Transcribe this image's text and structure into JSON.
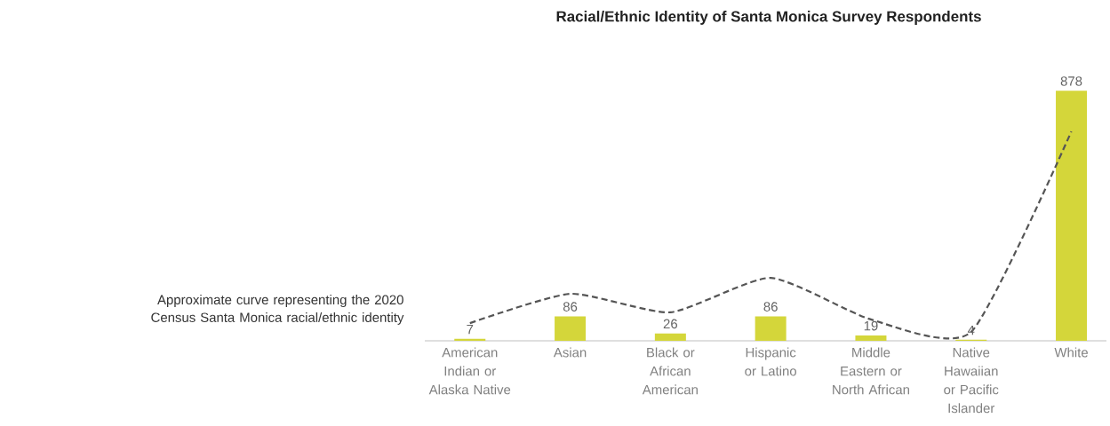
{
  "chart_data": {
    "type": "bar",
    "title": "Racial/Ethnic Identity of Santa Monica Survey Respondents",
    "categories": [
      "American Indian or Alaska Native",
      "Asian",
      "Black or African American",
      "Hispanic or Latino",
      "Middle Eastern or North African",
      "Native Hawaiian or Pacific Islander",
      "White"
    ],
    "series": [
      {
        "color": "#d4d63a",
        "values": [
          7,
          86,
          26,
          86,
          19,
          4,
          878
        ],
        "data_labels": true
      },
      {
        "type": "line",
        "color": "#555555",
        "line_style": "dashed",
        "marker": "none",
        "values": [
          62,
          165,
          100,
          221,
          75,
          31,
          735
        ]
      }
    ],
    "tick_labels": "x",
    "annotations": [
      "Approximate curve representing the 2020 Census Santa Monica racial/ethnic identity"
    ]
  }
}
